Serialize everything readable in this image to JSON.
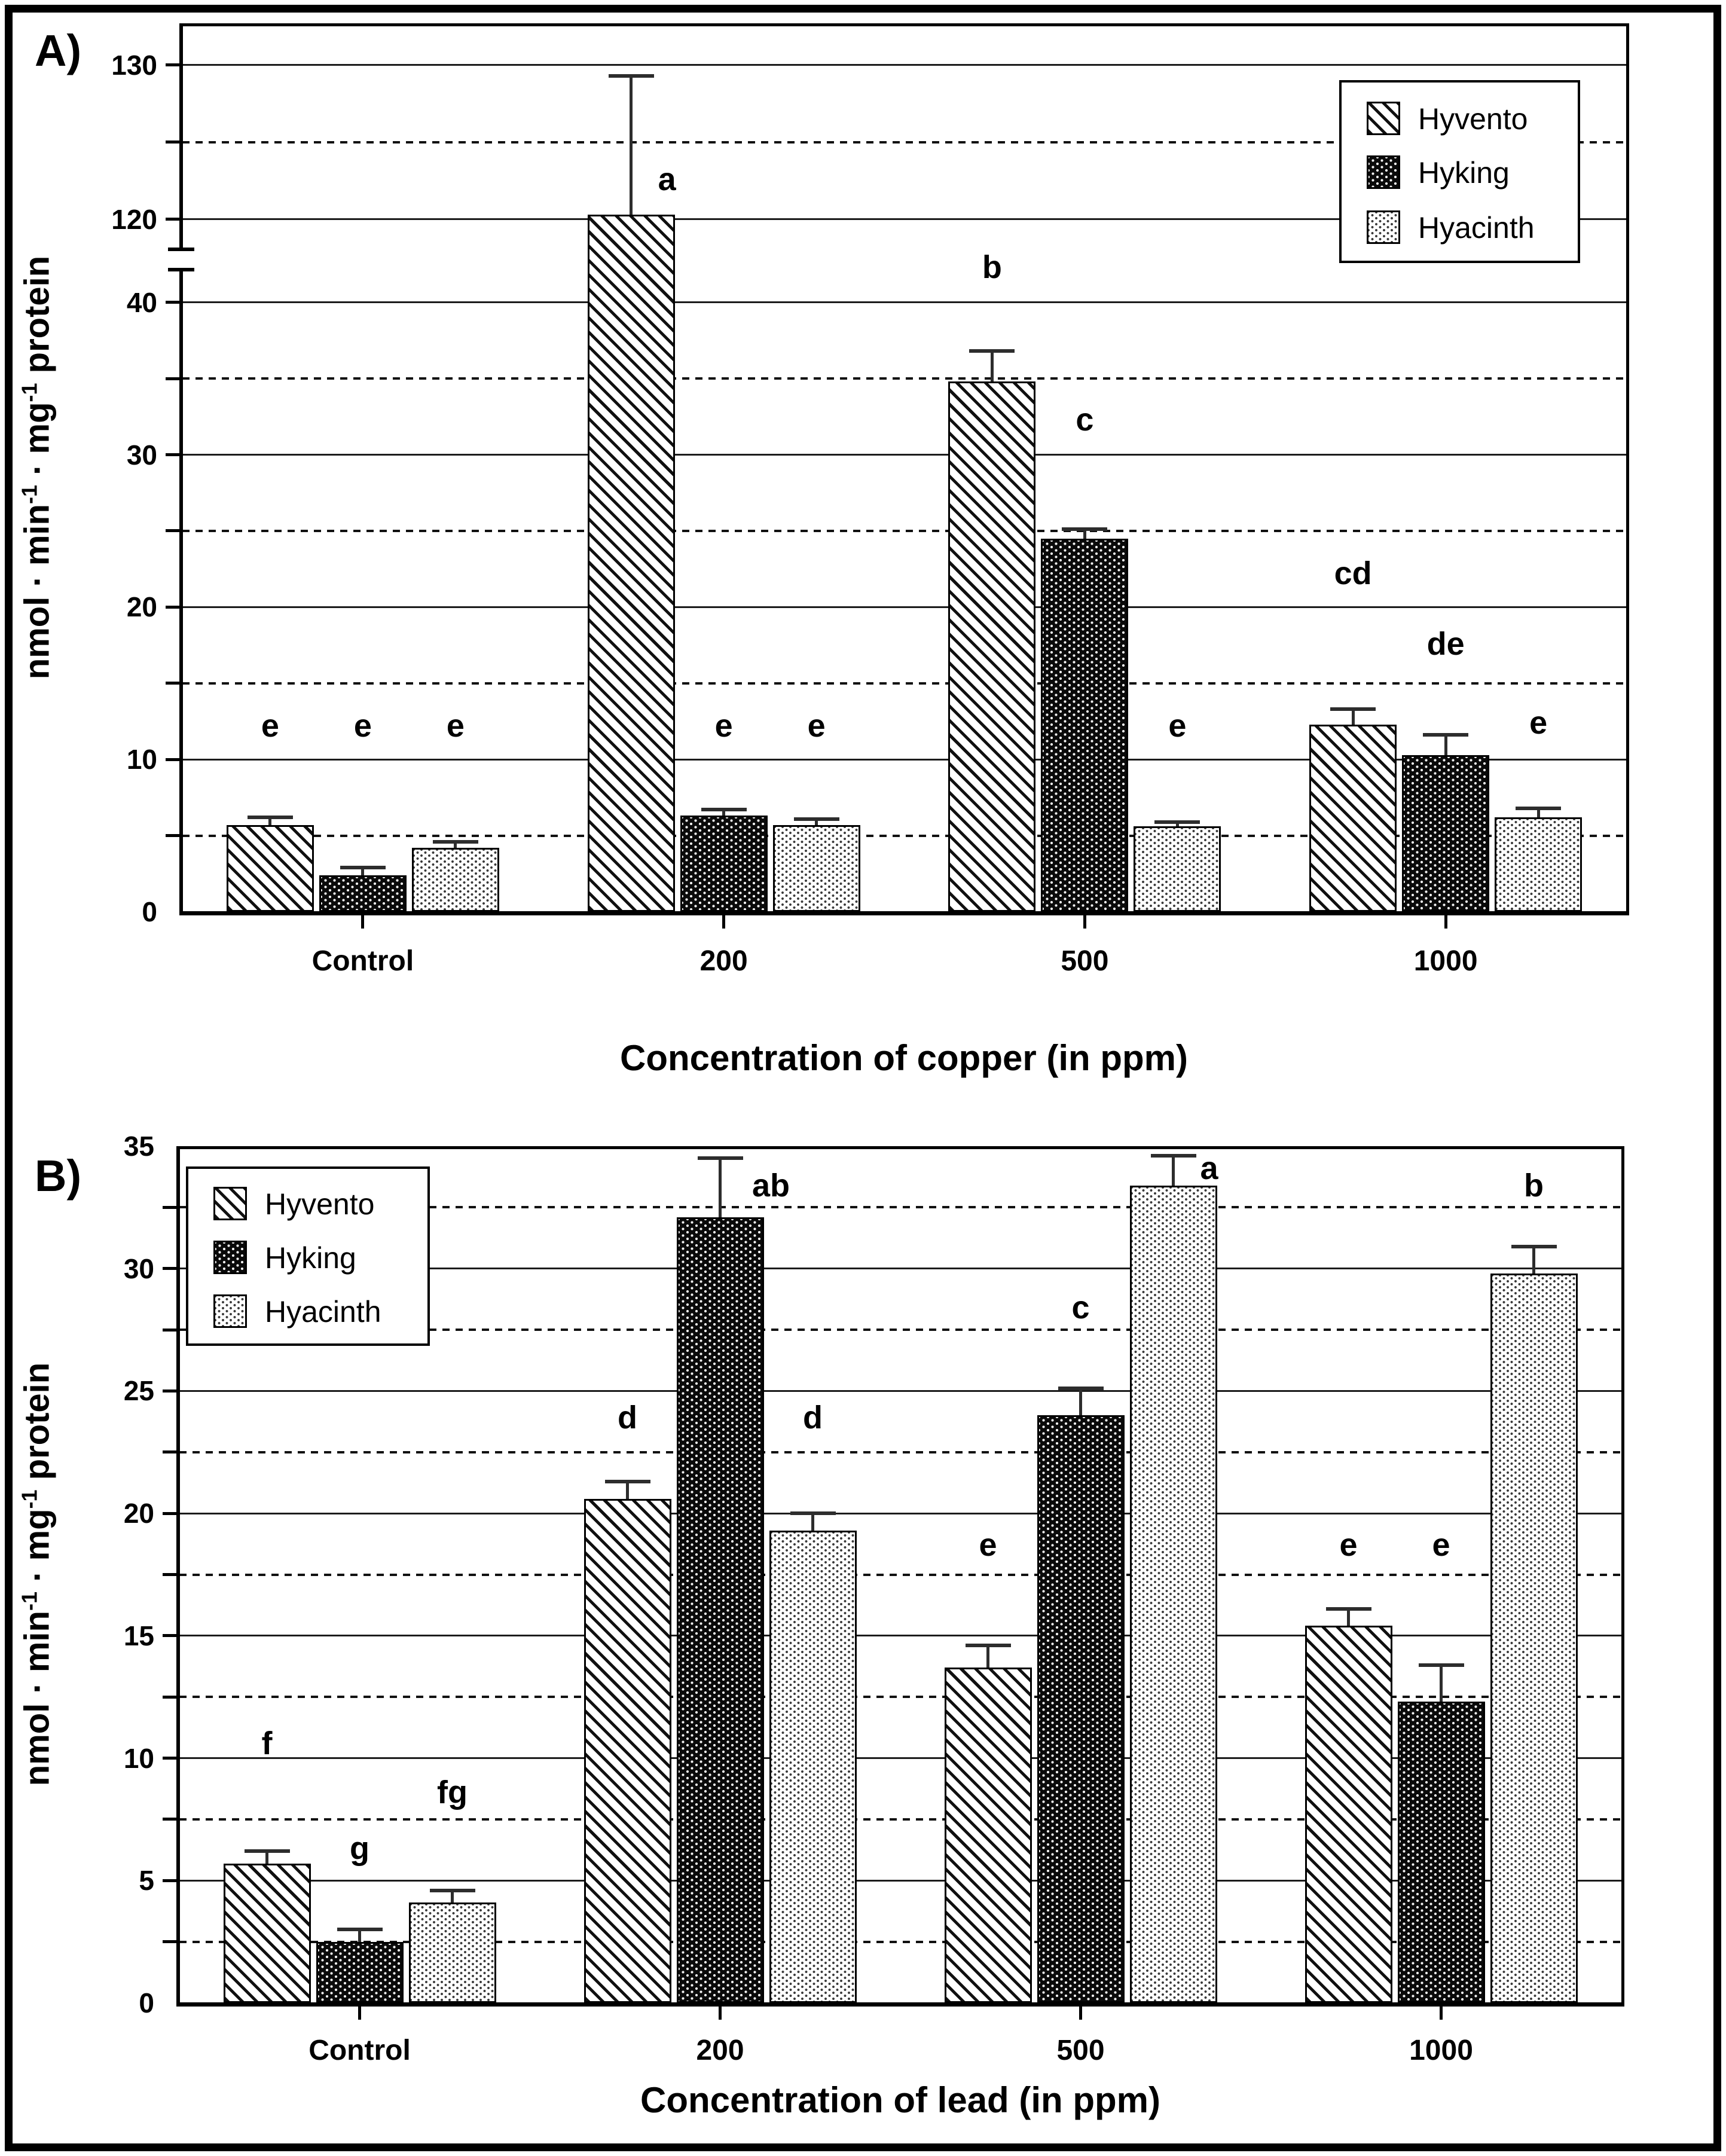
{
  "figure": {
    "panel_a_label": "A)",
    "panel_b_label": "B)",
    "y_title": {
      "p1": "nmol · min",
      "s1": "-1",
      "p2": " · mg",
      "s2": "-1",
      "p3": " protein"
    }
  },
  "legend": {
    "items": [
      {
        "label": "Hyvento",
        "pattern": "diagonal-hatch-swatch"
      },
      {
        "label": "Hyking",
        "pattern": "black-white-dots-swatch"
      },
      {
        "label": "Hyacinth",
        "pattern": "light-speckle-swatch"
      }
    ]
  },
  "chart_data": [
    {
      "id": "A",
      "type": "bar",
      "title": "",
      "xlabel": "Concentration of copper (in ppm)",
      "ylabel": "nmol · min-1 · mg-1 protein",
      "categories": [
        "Control",
        "200",
        "500",
        "1000"
      ],
      "axis": {
        "broken": true,
        "lower_range": [
          0,
          42
        ],
        "upper_range": [
          118,
          133
        ],
        "solid_gridlines": [
          10,
          20,
          30,
          40,
          120,
          130
        ],
        "dashed_gridlines": [
          5,
          15,
          25,
          35,
          125
        ],
        "tick_marks": [
          5,
          10,
          15,
          20,
          25,
          30,
          35,
          40,
          120,
          125,
          130
        ],
        "tick_labels": [
          {
            "v": 0,
            "t": "0"
          },
          {
            "v": 10,
            "t": "10"
          },
          {
            "v": 20,
            "t": "20"
          },
          {
            "v": 30,
            "t": "30"
          },
          {
            "v": 40,
            "t": "40"
          },
          {
            "v": 120,
            "t": "120"
          },
          {
            "v": 130,
            "t": "130"
          }
        ]
      },
      "series": [
        {
          "name": "Hyvento",
          "values": [
            5.7,
            120.3,
            34.8,
            12.3
          ],
          "errors": [
            0.5,
            9.0,
            2.0,
            1.0
          ],
          "letters": [
            {
              "t": "e",
              "v": 12.2
            },
            {
              "t": "a",
              "v": 122.6,
              "dx": 60
            },
            {
              "t": "b",
              "v": 42.3
            },
            {
              "t": "cd",
              "v": 22.2
            }
          ]
        },
        {
          "name": "Hyking",
          "values": [
            2.4,
            6.3,
            24.5,
            10.3
          ],
          "errors": [
            0.5,
            0.4,
            0.6,
            1.3
          ],
          "letters": [
            {
              "t": "e",
              "v": 12.2
            },
            {
              "t": "e",
              "v": 12.2
            },
            {
              "t": "c",
              "v": 32.3
            },
            {
              "t": "de",
              "v": 17.6
            }
          ]
        },
        {
          "name": "Hyacinth",
          "values": [
            4.2,
            5.7,
            5.6,
            6.2
          ],
          "errors": [
            0.4,
            0.4,
            0.3,
            0.6
          ],
          "letters": [
            {
              "t": "e",
              "v": 12.2
            },
            {
              "t": "e",
              "v": 12.2
            },
            {
              "t": "e",
              "v": 12.2
            },
            {
              "t": "e",
              "v": 12.4
            }
          ]
        }
      ]
    },
    {
      "id": "B",
      "type": "bar",
      "title": "",
      "xlabel": "Concentration of lead (in ppm)",
      "ylabel": "nmol · min-1 · mg-1 protein",
      "categories": [
        "Control",
        "200",
        "500",
        "1000"
      ],
      "axis": {
        "broken": false,
        "ylim": [
          0,
          35
        ],
        "solid_gridlines": [
          5,
          10,
          15,
          20,
          25,
          30
        ],
        "dashed_gridlines": [
          2.5,
          7.5,
          12.5,
          17.5,
          22.5,
          27.5,
          32.5
        ],
        "tick_marks": [
          2.5,
          5,
          7.5,
          10,
          12.5,
          15,
          17.5,
          20,
          22.5,
          25,
          27.5,
          30,
          32.5
        ],
        "tick_labels": [
          {
            "v": 0,
            "t": "0"
          },
          {
            "v": 5,
            "t": "5"
          },
          {
            "v": 10,
            "t": "10"
          },
          {
            "v": 15,
            "t": "15"
          },
          {
            "v": 20,
            "t": "20"
          },
          {
            "v": 25,
            "t": "25"
          },
          {
            "v": 30,
            "t": "30"
          },
          {
            "v": 35,
            "t": "35"
          }
        ]
      },
      "series": [
        {
          "name": "Hyvento",
          "values": [
            5.7,
            20.6,
            13.7,
            15.4
          ],
          "errors": [
            0.5,
            0.7,
            0.9,
            0.7
          ],
          "letters": [
            {
              "t": "f",
              "v": 10.6
            },
            {
              "t": "d",
              "v": 23.9
            },
            {
              "t": "e",
              "v": 18.7
            },
            {
              "t": "e",
              "v": 18.7
            }
          ]
        },
        {
          "name": "Hyking",
          "values": [
            2.5,
            32.1,
            24.0,
            12.3
          ],
          "errors": [
            0.5,
            2.4,
            1.1,
            1.5
          ],
          "letters": [
            {
              "t": "g",
              "v": 6.3
            },
            {
              "t": "ab",
              "v": 33.4,
              "dx": 85
            },
            {
              "t": "c",
              "v": 28.4
            },
            {
              "t": "e",
              "v": 18.7
            }
          ]
        },
        {
          "name": "Hyacinth",
          "values": [
            4.1,
            19.3,
            33.4,
            29.8
          ],
          "errors": [
            0.5,
            0.7,
            1.2,
            1.1
          ],
          "letters": [
            {
              "t": "fg",
              "v": 8.6
            },
            {
              "t": "d",
              "v": 23.9
            },
            {
              "t": "a",
              "v": 34.1,
              "dx": 60
            },
            {
              "t": "b",
              "v": 33.4
            }
          ]
        }
      ]
    }
  ]
}
